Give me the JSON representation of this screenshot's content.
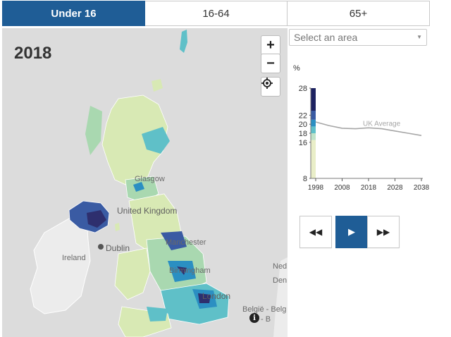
{
  "tabs": [
    {
      "label": "Under 16",
      "active": true
    },
    {
      "label": "16-64",
      "active": false
    },
    {
      "label": "65+",
      "active": false
    }
  ],
  "map": {
    "year": "2018",
    "zoom_in": "+",
    "zoom_out": "−",
    "labels": {
      "glasgow": "Glasgow",
      "united_kingdom": "United Kingdom",
      "manchester": "Manchester",
      "dublin": "Dublin",
      "ireland": "Ireland",
      "birmingham": "Birmingham",
      "london": "London",
      "belgie": "België - Belg",
      "belgie2": "- B",
      "ned": "Ned",
      "den_h": "Den H"
    },
    "info": "i",
    "colors": {
      "sea": "#dcdcdc",
      "land_other": "#ececec",
      "low": "#d8e9b4",
      "mid_low": "#a9d8b0",
      "mid": "#5fc0c8",
      "mid_high": "#2b8fc2",
      "high": "#3a5ba3",
      "highest": "#2e2f6e"
    }
  },
  "area_select": {
    "placeholder": "Select an area",
    "caret": "▼"
  },
  "chart_data": {
    "type": "line",
    "ylabel": "%",
    "yticks": [
      8,
      16,
      18,
      20,
      22,
      28
    ],
    "xticks": [
      1998,
      2008,
      2018,
      2028,
      2038
    ],
    "ylim": [
      8,
      28
    ],
    "xlim": [
      1998,
      2038
    ],
    "series": [
      {
        "name": "UK Average",
        "x": [
          1998,
          2003,
          2008,
          2013,
          2018,
          2023,
          2028,
          2033,
          2038
        ],
        "values": [
          20.5,
          19.7,
          19.1,
          19.0,
          19.2,
          19.0,
          18.5,
          18.0,
          17.5
        ]
      }
    ],
    "distribution_bar": {
      "x": 1998,
      "bands": [
        {
          "from": 8,
          "to": 16.5,
          "color": "#e9eec8"
        },
        {
          "from": 16.5,
          "to": 18,
          "color": "#bfe3c8"
        },
        {
          "from": 18,
          "to": 19.5,
          "color": "#5fc0c8"
        },
        {
          "from": 19.5,
          "to": 21,
          "color": "#2b8fc2"
        },
        {
          "from": 21,
          "to": 23,
          "color": "#3a5ba3"
        },
        {
          "from": 23,
          "to": 28,
          "color": "#1d2260"
        }
      ]
    },
    "line_color": "#a6a6a6"
  },
  "playback": {
    "rewind": "◀◀",
    "play": "▶",
    "forward": "▶▶"
  }
}
